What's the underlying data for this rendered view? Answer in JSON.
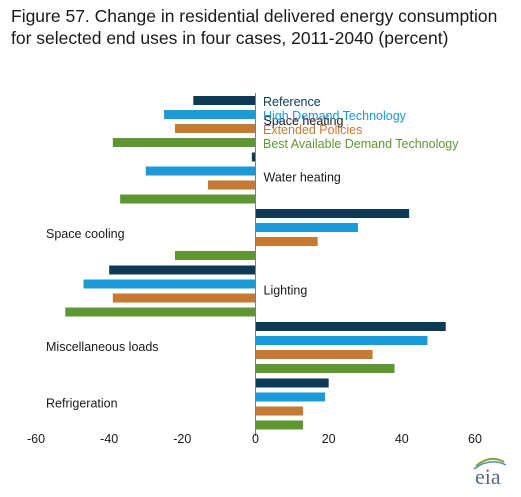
{
  "title": "Figure 57. Change in residential delivered energy consumption for selected end uses in four cases, 2011-2040 (percent)",
  "logo_text": "eia",
  "chart_data": {
    "type": "bar",
    "orientation": "horizontal",
    "categories": [
      "Space heating",
      "Water heating",
      "Space cooling",
      "Lighting",
      "Miscellaneous loads",
      "Refrigeration"
    ],
    "series": [
      {
        "name": "Reference",
        "color": "#0f3a56",
        "values": [
          -17,
          -1,
          42,
          -40,
          52,
          20
        ]
      },
      {
        "name": "High Demand Technology",
        "color": "#1a9ad6",
        "values": [
          -25,
          -30,
          28,
          -47,
          47,
          19
        ]
      },
      {
        "name": "Extended Policies",
        "color": "#c47a33",
        "values": [
          -22,
          -13,
          17,
          -39,
          32,
          13
        ]
      },
      {
        "name": "Best Available Demand Technology",
        "color": "#5e9732",
        "values": [
          -39,
          -37,
          -22,
          -52,
          38,
          13
        ]
      }
    ],
    "xlim": [
      -60,
      60
    ],
    "xticks": [
      -60,
      -40,
      -20,
      0,
      20,
      40,
      60
    ],
    "xticklabels": [
      "-60",
      "-40",
      "-20",
      "0",
      "20",
      "40",
      "60"
    ],
    "grid": false,
    "legend_position": "top-center"
  }
}
